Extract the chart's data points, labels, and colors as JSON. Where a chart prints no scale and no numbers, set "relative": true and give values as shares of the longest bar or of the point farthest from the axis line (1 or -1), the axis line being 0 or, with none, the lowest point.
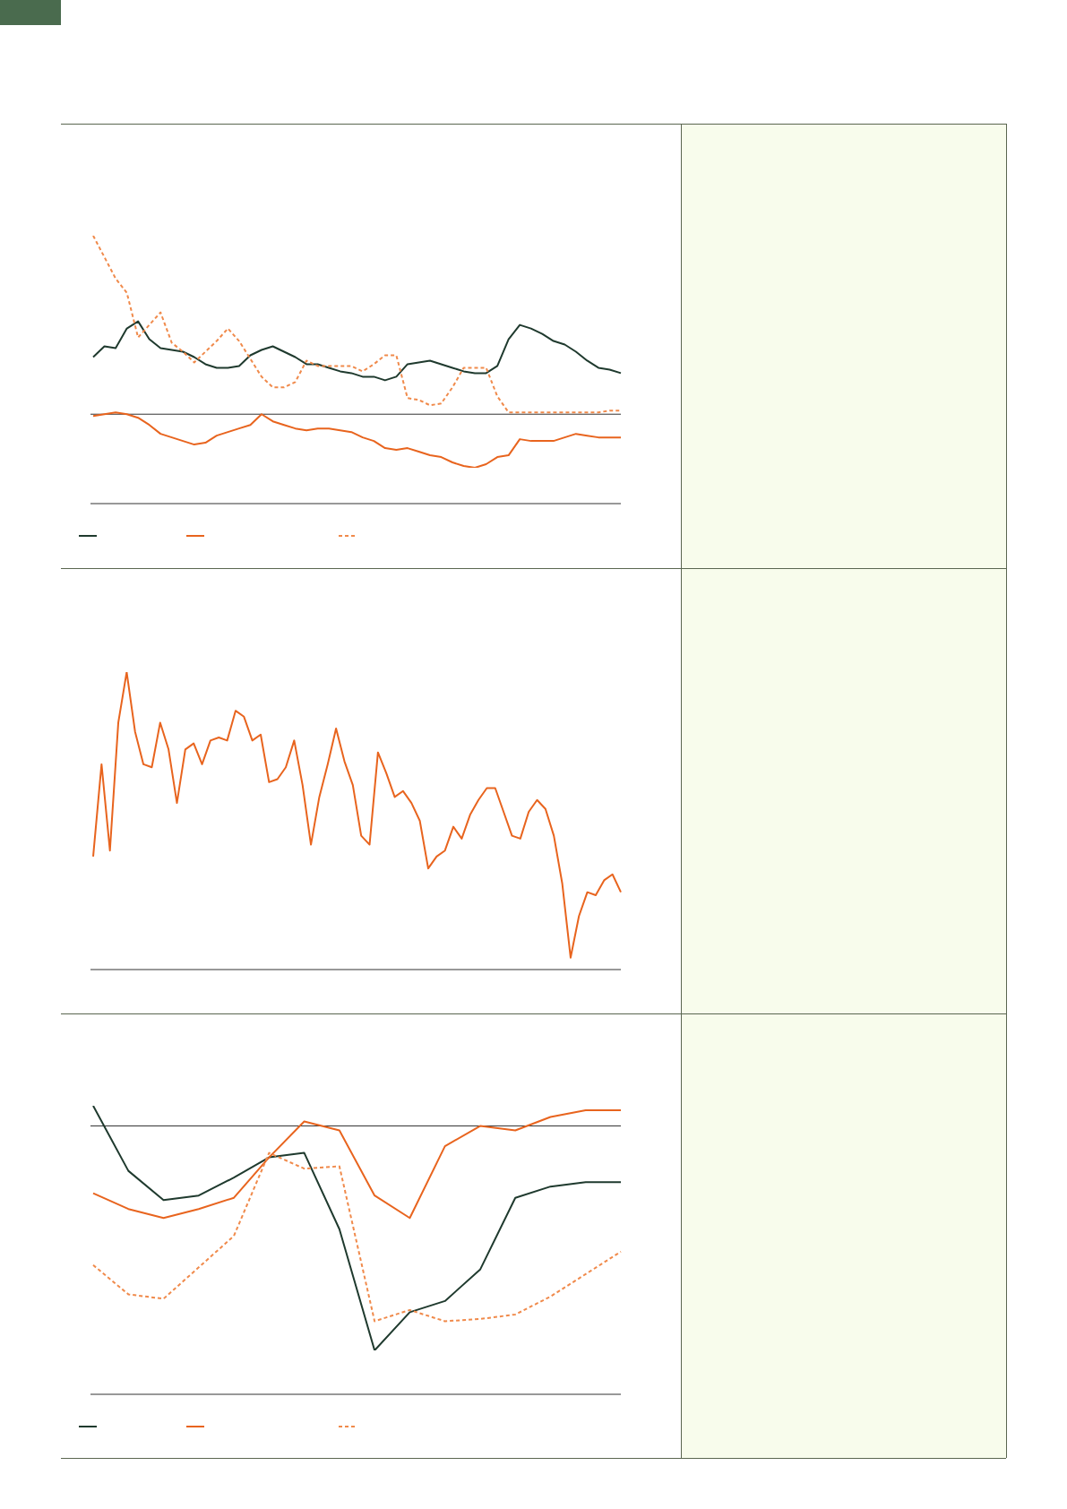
{
  "chart_data": [
    {
      "type": "line",
      "relative": true,
      "categories": [
        null,
        null,
        null,
        null,
        null,
        null,
        null,
        null,
        null,
        null,
        null,
        null,
        null,
        null,
        null,
        null,
        null,
        null,
        null,
        null,
        null,
        null,
        null,
        null,
        null,
        null,
        null,
        null,
        null,
        null,
        null,
        null,
        null,
        null,
        null,
        null,
        null,
        null,
        null,
        null,
        null,
        null,
        null,
        null,
        null,
        null,
        null,
        null
      ],
      "series": [
        {
          "color": "#1f3a2e",
          "line_style": "solid",
          "values": [
            0.32,
            0.38,
            0.37,
            0.48,
            0.52,
            0.42,
            0.37,
            0.36,
            0.35,
            0.32,
            0.28,
            0.26,
            0.26,
            0.27,
            0.33,
            0.36,
            0.38,
            0.35,
            0.32,
            0.28,
            0.28,
            0.26,
            0.24,
            0.23,
            0.21,
            0.21,
            0.19,
            0.21,
            0.28,
            0.29,
            0.3,
            0.28,
            0.26,
            0.24,
            0.23,
            0.23,
            0.27,
            0.42,
            0.5,
            0.48,
            0.45,
            0.41,
            0.39,
            0.35,
            0.3,
            0.26,
            0.25,
            0.23
          ]
        },
        {
          "color": "#e8641e",
          "line_style": "solid",
          "values": [
            -0.01,
            0.0,
            0.01,
            0.0,
            -0.02,
            -0.06,
            -0.11,
            -0.13,
            -0.15,
            -0.17,
            -0.16,
            -0.12,
            -0.1,
            -0.08,
            -0.06,
            0.0,
            -0.04,
            -0.06,
            -0.08,
            -0.09,
            -0.08,
            -0.08,
            -0.09,
            -0.1,
            -0.13,
            -0.15,
            -0.19,
            -0.2,
            -0.19,
            -0.21,
            -0.23,
            -0.24,
            -0.27,
            -0.29,
            -0.3,
            -0.28,
            -0.24,
            -0.23,
            -0.14,
            -0.15,
            -0.15,
            -0.15,
            -0.13,
            -0.11,
            -0.12,
            -0.13,
            -0.13,
            -0.13
          ]
        },
        {
          "color": "#f08a4b",
          "line_style": "dashed",
          "values": [
            1.0,
            0.88,
            0.76,
            0.68,
            0.43,
            0.5,
            0.57,
            0.4,
            0.35,
            0.29,
            0.35,
            0.41,
            0.48,
            0.41,
            0.31,
            0.21,
            0.15,
            0.15,
            0.18,
            0.3,
            0.27,
            0.27,
            0.27,
            0.27,
            0.24,
            0.28,
            0.33,
            0.33,
            0.09,
            0.08,
            0.05,
            0.06,
            0.15,
            0.26,
            0.26,
            0.26,
            0.1,
            0.01,
            0.01,
            0.01,
            0.01,
            0.01,
            0.01,
            0.01,
            0.01,
            0.01,
            0.02,
            0.02
          ]
        }
      ]
    },
    {
      "type": "line",
      "relative": true,
      "categories": [
        null,
        null,
        null,
        null,
        null,
        null,
        null,
        null,
        null,
        null,
        null,
        null,
        null,
        null,
        null,
        null,
        null,
        null,
        null,
        null,
        null,
        null,
        null,
        null,
        null,
        null,
        null,
        null,
        null,
        null,
        null,
        null,
        null,
        null,
        null,
        null,
        null,
        null,
        null,
        null,
        null,
        null,
        null,
        null,
        null,
        null,
        null,
        null,
        null,
        null,
        null,
        null,
        null,
        null,
        null,
        null,
        null,
        null,
        null,
        null,
        null,
        null,
        null,
        null
      ],
      "series": [
        {
          "color": "#e8641e",
          "line_style": "solid",
          "values": [
            0.38,
            0.69,
            0.4,
            0.83,
            1.0,
            0.8,
            0.69,
            0.68,
            0.83,
            0.74,
            0.56,
            0.74,
            0.76,
            0.69,
            0.77,
            0.78,
            0.77,
            0.87,
            0.85,
            0.77,
            0.79,
            0.63,
            0.64,
            0.68,
            0.77,
            0.62,
            0.42,
            0.58,
            0.69,
            0.81,
            0.7,
            0.62,
            0.45,
            0.42,
            0.73,
            0.66,
            0.58,
            0.6,
            0.56,
            0.5,
            0.34,
            0.38,
            0.4,
            0.48,
            0.44,
            0.52,
            0.57,
            0.61,
            0.61,
            0.53,
            0.45,
            0.44,
            0.53,
            0.57,
            0.54,
            0.45,
            0.29,
            0.04,
            0.18,
            0.26,
            0.25,
            0.3,
            0.32,
            0.26
          ]
        }
      ]
    },
    {
      "type": "line",
      "relative": true,
      "categories": [
        null,
        null,
        null,
        null,
        null,
        null,
        null,
        null,
        null,
        null,
        null,
        null,
        null,
        null,
        null,
        null
      ],
      "series": [
        {
          "color": "#1f3a2e",
          "line_style": "solid",
          "values": [
            0.09,
            -0.2,
            -0.33,
            -0.31,
            -0.23,
            -0.14,
            -0.12,
            -0.46,
            -1.0,
            -0.83,
            -0.78,
            -0.64,
            -0.32,
            -0.27,
            -0.25,
            -0.25
          ]
        },
        {
          "color": "#e8641e",
          "line_style": "solid",
          "values": [
            -0.3,
            -0.37,
            -0.41,
            -0.37,
            -0.32,
            -0.14,
            0.02,
            -0.02,
            -0.31,
            -0.41,
            -0.09,
            0.0,
            -0.02,
            0.04,
            0.07,
            0.07
          ]
        },
        {
          "color": "#f08a4b",
          "line_style": "dashed",
          "values": [
            -0.62,
            -0.75,
            -0.77,
            -0.63,
            -0.49,
            -0.12,
            -0.19,
            -0.18,
            -0.87,
            -0.82,
            -0.87,
            -0.86,
            -0.84,
            -0.76,
            -0.66,
            -0.56
          ]
        }
      ]
    }
  ]
}
